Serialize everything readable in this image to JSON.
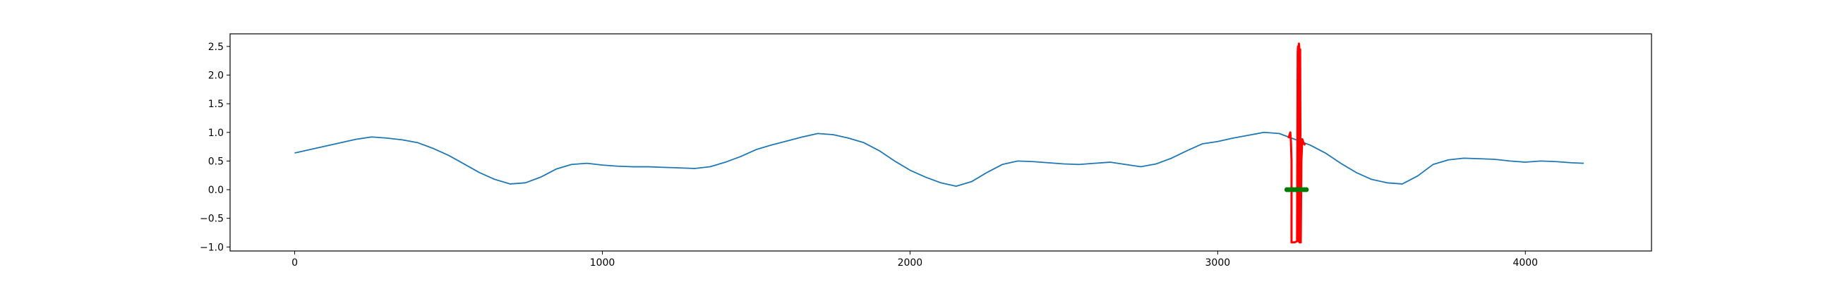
{
  "chart_data": {
    "type": "line",
    "title": "",
    "xlabel": "",
    "ylabel": "",
    "xlim": [
      -210,
      4410
    ],
    "ylim": [
      -1.07,
      2.72
    ],
    "grid": false,
    "x_ticks": [
      0,
      1000,
      2000,
      3000,
      4000
    ],
    "x_tick_labels": [
      "0",
      "1000",
      "2000",
      "3000",
      "4000"
    ],
    "y_ticks": [
      -1.0,
      -0.5,
      0.0,
      0.5,
      1.0,
      1.5,
      2.0,
      2.5
    ],
    "y_tick_labels": [
      "−1.0",
      "−0.5",
      "0.0",
      "0.5",
      "1.0",
      "1.5",
      "2.0",
      "2.5"
    ],
    "series": [
      {
        "color": "#1f77b4",
        "style": "line",
        "x": [
          0,
          50,
          100,
          150,
          200,
          250,
          300,
          350,
          400,
          450,
          500,
          550,
          600,
          650,
          700,
          750,
          800,
          850,
          900,
          950,
          1000,
          1050,
          1100,
          1150,
          1200,
          1250,
          1300,
          1350,
          1400,
          1450,
          1500,
          1550,
          1600,
          1650,
          1700,
          1750,
          1800,
          1850,
          1900,
          1950,
          2000,
          2050,
          2100,
          2150,
          2200,
          2250,
          2300,
          2350,
          2400,
          2450,
          2500,
          2550,
          2600,
          2650,
          2700,
          2750,
          2800,
          2850,
          2900,
          2950,
          3000,
          3050,
          3100,
          3150,
          3200,
          3250,
          3300,
          3350,
          3400,
          3450,
          3500,
          3550,
          3600,
          3650,
          3700,
          3750,
          3800,
          3850,
          3900,
          3950,
          4000,
          4050,
          4100,
          4150,
          4190
        ],
        "y": [
          0.64,
          0.7,
          0.76,
          0.82,
          0.88,
          0.92,
          0.9,
          0.87,
          0.82,
          0.72,
          0.6,
          0.45,
          0.3,
          0.18,
          0.1,
          0.12,
          0.22,
          0.36,
          0.44,
          0.46,
          0.43,
          0.41,
          0.4,
          0.4,
          0.39,
          0.38,
          0.37,
          0.4,
          0.48,
          0.58,
          0.7,
          0.78,
          0.85,
          0.92,
          0.98,
          0.96,
          0.9,
          0.82,
          0.68,
          0.5,
          0.34,
          0.22,
          0.12,
          0.06,
          0.14,
          0.3,
          0.44,
          0.5,
          0.49,
          0.47,
          0.45,
          0.44,
          0.46,
          0.48,
          0.44,
          0.4,
          0.45,
          0.55,
          0.68,
          0.8,
          0.84,
          0.9,
          0.95,
          1.0,
          0.98,
          0.88,
          0.78,
          0.64,
          0.46,
          0.3,
          0.18,
          0.12,
          0.1,
          0.24,
          0.44,
          0.52,
          0.55,
          0.54,
          0.53,
          0.5,
          0.48,
          0.5,
          0.49,
          0.47,
          0.46
        ]
      },
      {
        "color": "#ff0000",
        "style": "line",
        "x": [
          3230,
          3236,
          3238,
          3240,
          3240,
          3250,
          3258,
          3260,
          3261,
          3262,
          3264,
          3265,
          3266,
          3268,
          3270,
          3272,
          3275,
          3280,
          3285
        ],
        "y": [
          0.9,
          1.0,
          0.85,
          0.5,
          -0.92,
          -0.92,
          -0.9,
          2.4,
          2.5,
          -0.9,
          2.55,
          2.5,
          -0.92,
          2.45,
          -0.92,
          0.5,
          0.88,
          0.8,
          0.78
        ]
      },
      {
        "color": "#007a00",
        "style": "dots",
        "x": [
          3225,
          3232,
          3239,
          3246,
          3253,
          3260,
          3267,
          3274,
          3281,
          3288
        ],
        "y": [
          0.0,
          0.0,
          0.0,
          0.0,
          0.0,
          0.0,
          0.0,
          0.0,
          0.0,
          0.0
        ]
      }
    ]
  }
}
